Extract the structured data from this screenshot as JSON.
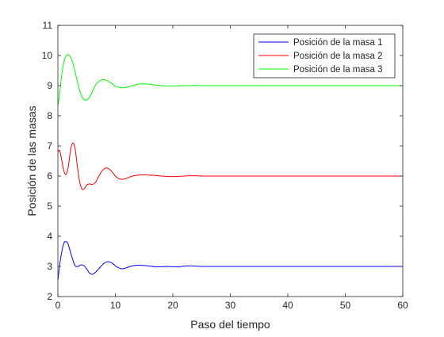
{
  "chart_data": {
    "type": "line",
    "title": "",
    "xlabel": "Paso del tiempo",
    "ylabel": "Posición de las masas",
    "xlim": [
      0,
      60
    ],
    "ylim": [
      2,
      11
    ],
    "xticks": [
      0,
      10,
      20,
      30,
      40,
      50,
      60
    ],
    "yticks": [
      2,
      3,
      4,
      5,
      6,
      7,
      8,
      9,
      10,
      11
    ],
    "grid": false,
    "legend_position": "top-right",
    "series": [
      {
        "name": "Posición de la masa 1",
        "color": "#0000ff",
        "x": [
          0,
          0.5,
          1,
          1.3,
          1.7,
          2,
          2.5,
          3,
          3.5,
          4,
          4.5,
          5,
          5.5,
          6,
          6.5,
          7,
          7.5,
          8,
          8.5,
          9,
          9.5,
          10,
          10.5,
          11,
          11.5,
          12,
          13,
          14,
          15,
          16,
          17,
          18,
          19,
          20,
          21,
          22,
          23,
          24,
          25,
          26,
          28,
          30,
          35,
          40,
          45,
          50,
          55,
          60
        ],
        "y": [
          2.55,
          3.3,
          3.75,
          3.82,
          3.78,
          3.6,
          3.28,
          3.02,
          3.0,
          3.05,
          3.03,
          2.92,
          2.78,
          2.74,
          2.8,
          2.9,
          3.0,
          3.1,
          3.15,
          3.15,
          3.1,
          3.02,
          2.96,
          2.92,
          2.93,
          2.96,
          3.02,
          3.04,
          3.03,
          3.01,
          2.99,
          2.99,
          3.0,
          2.99,
          2.99,
          3.01,
          3.02,
          3.01,
          3.0,
          3.0,
          3.0,
          3.0,
          3.0,
          3.0,
          3.0,
          3.0,
          3.0,
          3.0
        ]
      },
      {
        "name": "Posición de la masa 2",
        "color": "#ff0000",
        "x": [
          0,
          0.3,
          0.6,
          1,
          1.4,
          1.8,
          2.2,
          2.6,
          3,
          3.4,
          3.8,
          4.2,
          4.6,
          5,
          5.5,
          6,
          6.5,
          7,
          7.5,
          8,
          8.5,
          9,
          9.5,
          10,
          10.5,
          11,
          11.5,
          12,
          13,
          14,
          15,
          16,
          17,
          18,
          19,
          20,
          21,
          22,
          23,
          24,
          25,
          28,
          30,
          35,
          40,
          45,
          50,
          55,
          60
        ],
        "y": [
          6.8,
          6.85,
          6.6,
          6.2,
          6.05,
          6.3,
          6.85,
          7.1,
          6.9,
          6.3,
          5.8,
          5.57,
          5.58,
          5.7,
          5.74,
          5.72,
          5.78,
          5.95,
          6.12,
          6.23,
          6.27,
          6.22,
          6.12,
          6.0,
          5.92,
          5.89,
          5.9,
          5.93,
          6.0,
          6.03,
          6.04,
          6.03,
          6.02,
          6.0,
          5.99,
          5.98,
          5.99,
          6.0,
          6.01,
          6.01,
          6.0,
          6.0,
          6.0,
          6.0,
          6.0,
          6.0,
          6.0,
          6.0,
          6.0
        ]
      },
      {
        "name": "Posición de la masa 3",
        "color": "#00ff00",
        "x": [
          0,
          0.3,
          0.6,
          1,
          1.4,
          1.8,
          2.2,
          2.6,
          3,
          3.5,
          4,
          4.5,
          5,
          5.5,
          6,
          6.5,
          7,
          7.5,
          8,
          8.5,
          9,
          9.5,
          10,
          10.5,
          11,
          11.5,
          12,
          13,
          14,
          15,
          16,
          17,
          18,
          19,
          20,
          21,
          22,
          23,
          24,
          25,
          28,
          30,
          35,
          40,
          45,
          50,
          55,
          60
        ],
        "y": [
          8.35,
          8.7,
          9.25,
          9.75,
          9.98,
          10.03,
          9.95,
          9.75,
          9.45,
          9.05,
          8.72,
          8.55,
          8.52,
          8.62,
          8.8,
          9.0,
          9.12,
          9.18,
          9.2,
          9.17,
          9.12,
          9.05,
          8.98,
          8.95,
          8.93,
          8.93,
          8.95,
          9.0,
          9.05,
          9.06,
          9.05,
          9.02,
          9.0,
          8.99,
          8.99,
          8.99,
          9.0,
          9.0,
          9.01,
          9.0,
          9.0,
          9.0,
          9.0,
          9.0,
          9.0,
          9.0,
          9.0,
          9.0
        ]
      }
    ]
  }
}
